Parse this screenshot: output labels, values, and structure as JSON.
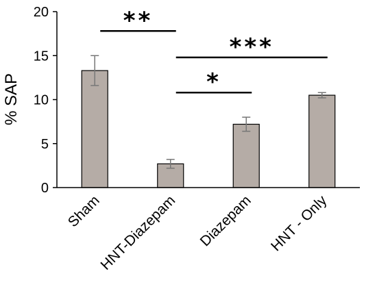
{
  "chart_data": {
    "type": "bar",
    "title": "",
    "xlabel": "",
    "ylabel": "% SAP",
    "ylim": [
      0,
      20
    ],
    "yticks": [
      0,
      5,
      10,
      15,
      20
    ],
    "grid": false,
    "categories": [
      "Sham",
      "HNT-Diazepam",
      "Diazepam",
      "HNT - Only"
    ],
    "values": [
      13.3,
      2.7,
      7.2,
      10.5
    ],
    "errors": [
      1.7,
      0.5,
      0.8,
      0.3
    ],
    "bar_color": "#b5aca6",
    "significance": [
      {
        "from": "Sham",
        "to": "HNT-Diazepam",
        "label": "**",
        "y": 17.8
      },
      {
        "from": "HNT-Diazepam",
        "to": "HNT - Only",
        "label": "***",
        "y": 14.8
      },
      {
        "from": "HNT-Diazepam",
        "to": "Diazepam",
        "label": "*",
        "y": 10.8
      }
    ]
  }
}
